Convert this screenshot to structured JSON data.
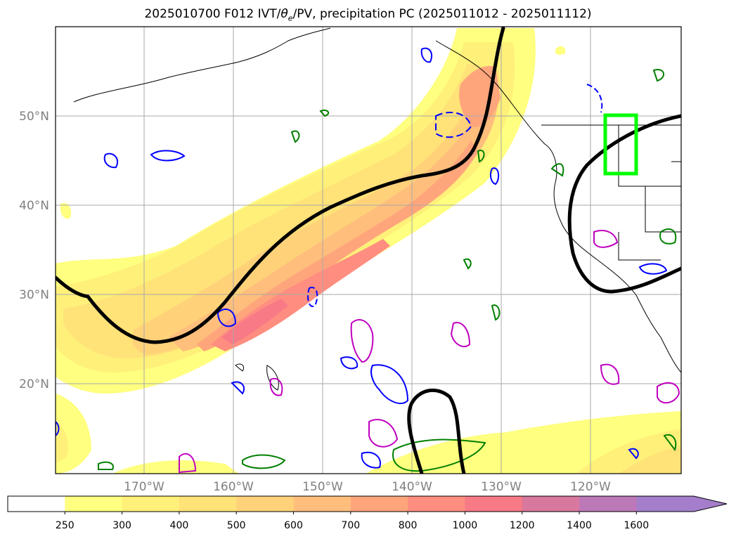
{
  "title": {
    "prefix": "2025010700 F012 IVT/",
    "theta": "θ",
    "theta_sub": "e",
    "suffix": "/PV, precipitation PC (2025011012 - 2025011112)"
  },
  "map": {
    "lat_labels": [
      "50°N",
      "40°N",
      "30°N",
      "20°N"
    ],
    "lon_labels": [
      "170°W",
      "160°W",
      "150°W",
      "140°W",
      "130°W",
      "120°W"
    ],
    "gridlines": true
  },
  "colorbar": {
    "levels": [
      "250",
      "300",
      "400",
      "500",
      "600",
      "700",
      "800",
      "1000",
      "1200",
      "1400",
      "1600"
    ],
    "colors": [
      "#ffffff",
      "#ffff80",
      "#fff07a",
      "#ffe278",
      "#ffd27a",
      "#ffbe7c",
      "#ffa57c",
      "#ff8e80",
      "#f77a86",
      "#d9789e",
      "#bd78b8",
      "#a47ecb"
    ],
    "extend": "max"
  },
  "colors": {
    "pv_contour": "#000000",
    "theta_e_contour": "#0000ff",
    "precip_pc_contour": "#008000",
    "precip_pc_alt_contour": "#c000c0",
    "region_box": "#00ff00"
  }
}
